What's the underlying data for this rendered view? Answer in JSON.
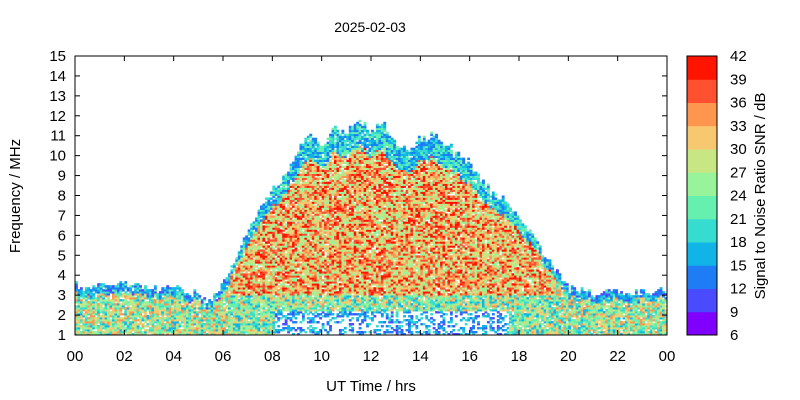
{
  "chart_data": {
    "type": "heatmap",
    "title": "2025-02-03",
    "xlabel": "UT Time / hrs",
    "ylabel": "Frequency / MHz",
    "colorbar_label": "Signal to Noise Ratio SNR / dB",
    "x_range": [
      0,
      24
    ],
    "y_range": [
      1,
      15
    ],
    "x_ticks": [
      "00",
      "02",
      "04",
      "06",
      "08",
      "10",
      "12",
      "14",
      "16",
      "18",
      "20",
      "22",
      "00"
    ],
    "y_ticks": [
      "1",
      "2",
      "3",
      "4",
      "5",
      "6",
      "7",
      "8",
      "9",
      "10",
      "11",
      "12",
      "13",
      "14",
      "15"
    ],
    "colorbar_ticks": [
      "6",
      "9",
      "12",
      "15",
      "18",
      "21",
      "24",
      "27",
      "30",
      "33",
      "36",
      "39",
      "42"
    ],
    "colorbar_range": [
      6,
      42
    ],
    "colorbar_colors": [
      "#8000ff",
      "#4a4aff",
      "#1e7cf5",
      "#10b4e6",
      "#36dcd0",
      "#66f0b0",
      "#98f49a",
      "#c8e684",
      "#f8c870",
      "#ff9650",
      "#ff5030",
      "#ff1400"
    ],
    "grid": false,
    "upper_frequency_profile": {
      "t": [
        0,
        1,
        2,
        3,
        4,
        5,
        5.5,
        6,
        6.5,
        7,
        7.5,
        8,
        8.5,
        9,
        9.5,
        10,
        10.5,
        11,
        11.5,
        12,
        12.5,
        13,
        13.5,
        14,
        14.5,
        15,
        15.5,
        16,
        16.5,
        17,
        17.5,
        18,
        18.5,
        19,
        19.5,
        20,
        21,
        22,
        23,
        24
      ],
      "mhz": [
        3.4,
        3.5,
        3.5,
        3.4,
        3.3,
        3.0,
        2.6,
        3.5,
        4.8,
        6.0,
        7.2,
        8.2,
        8.9,
        10.2,
        11.0,
        10.4,
        11.5,
        11.0,
        11.8,
        11.2,
        11.6,
        10.5,
        10.2,
        10.8,
        11.0,
        10.6,
        10.2,
        9.6,
        8.7,
        8.0,
        7.6,
        7.0,
        6.0,
        5.0,
        4.2,
        3.3,
        3.0,
        3.1,
        3.1,
        3.2
      ]
    }
  }
}
